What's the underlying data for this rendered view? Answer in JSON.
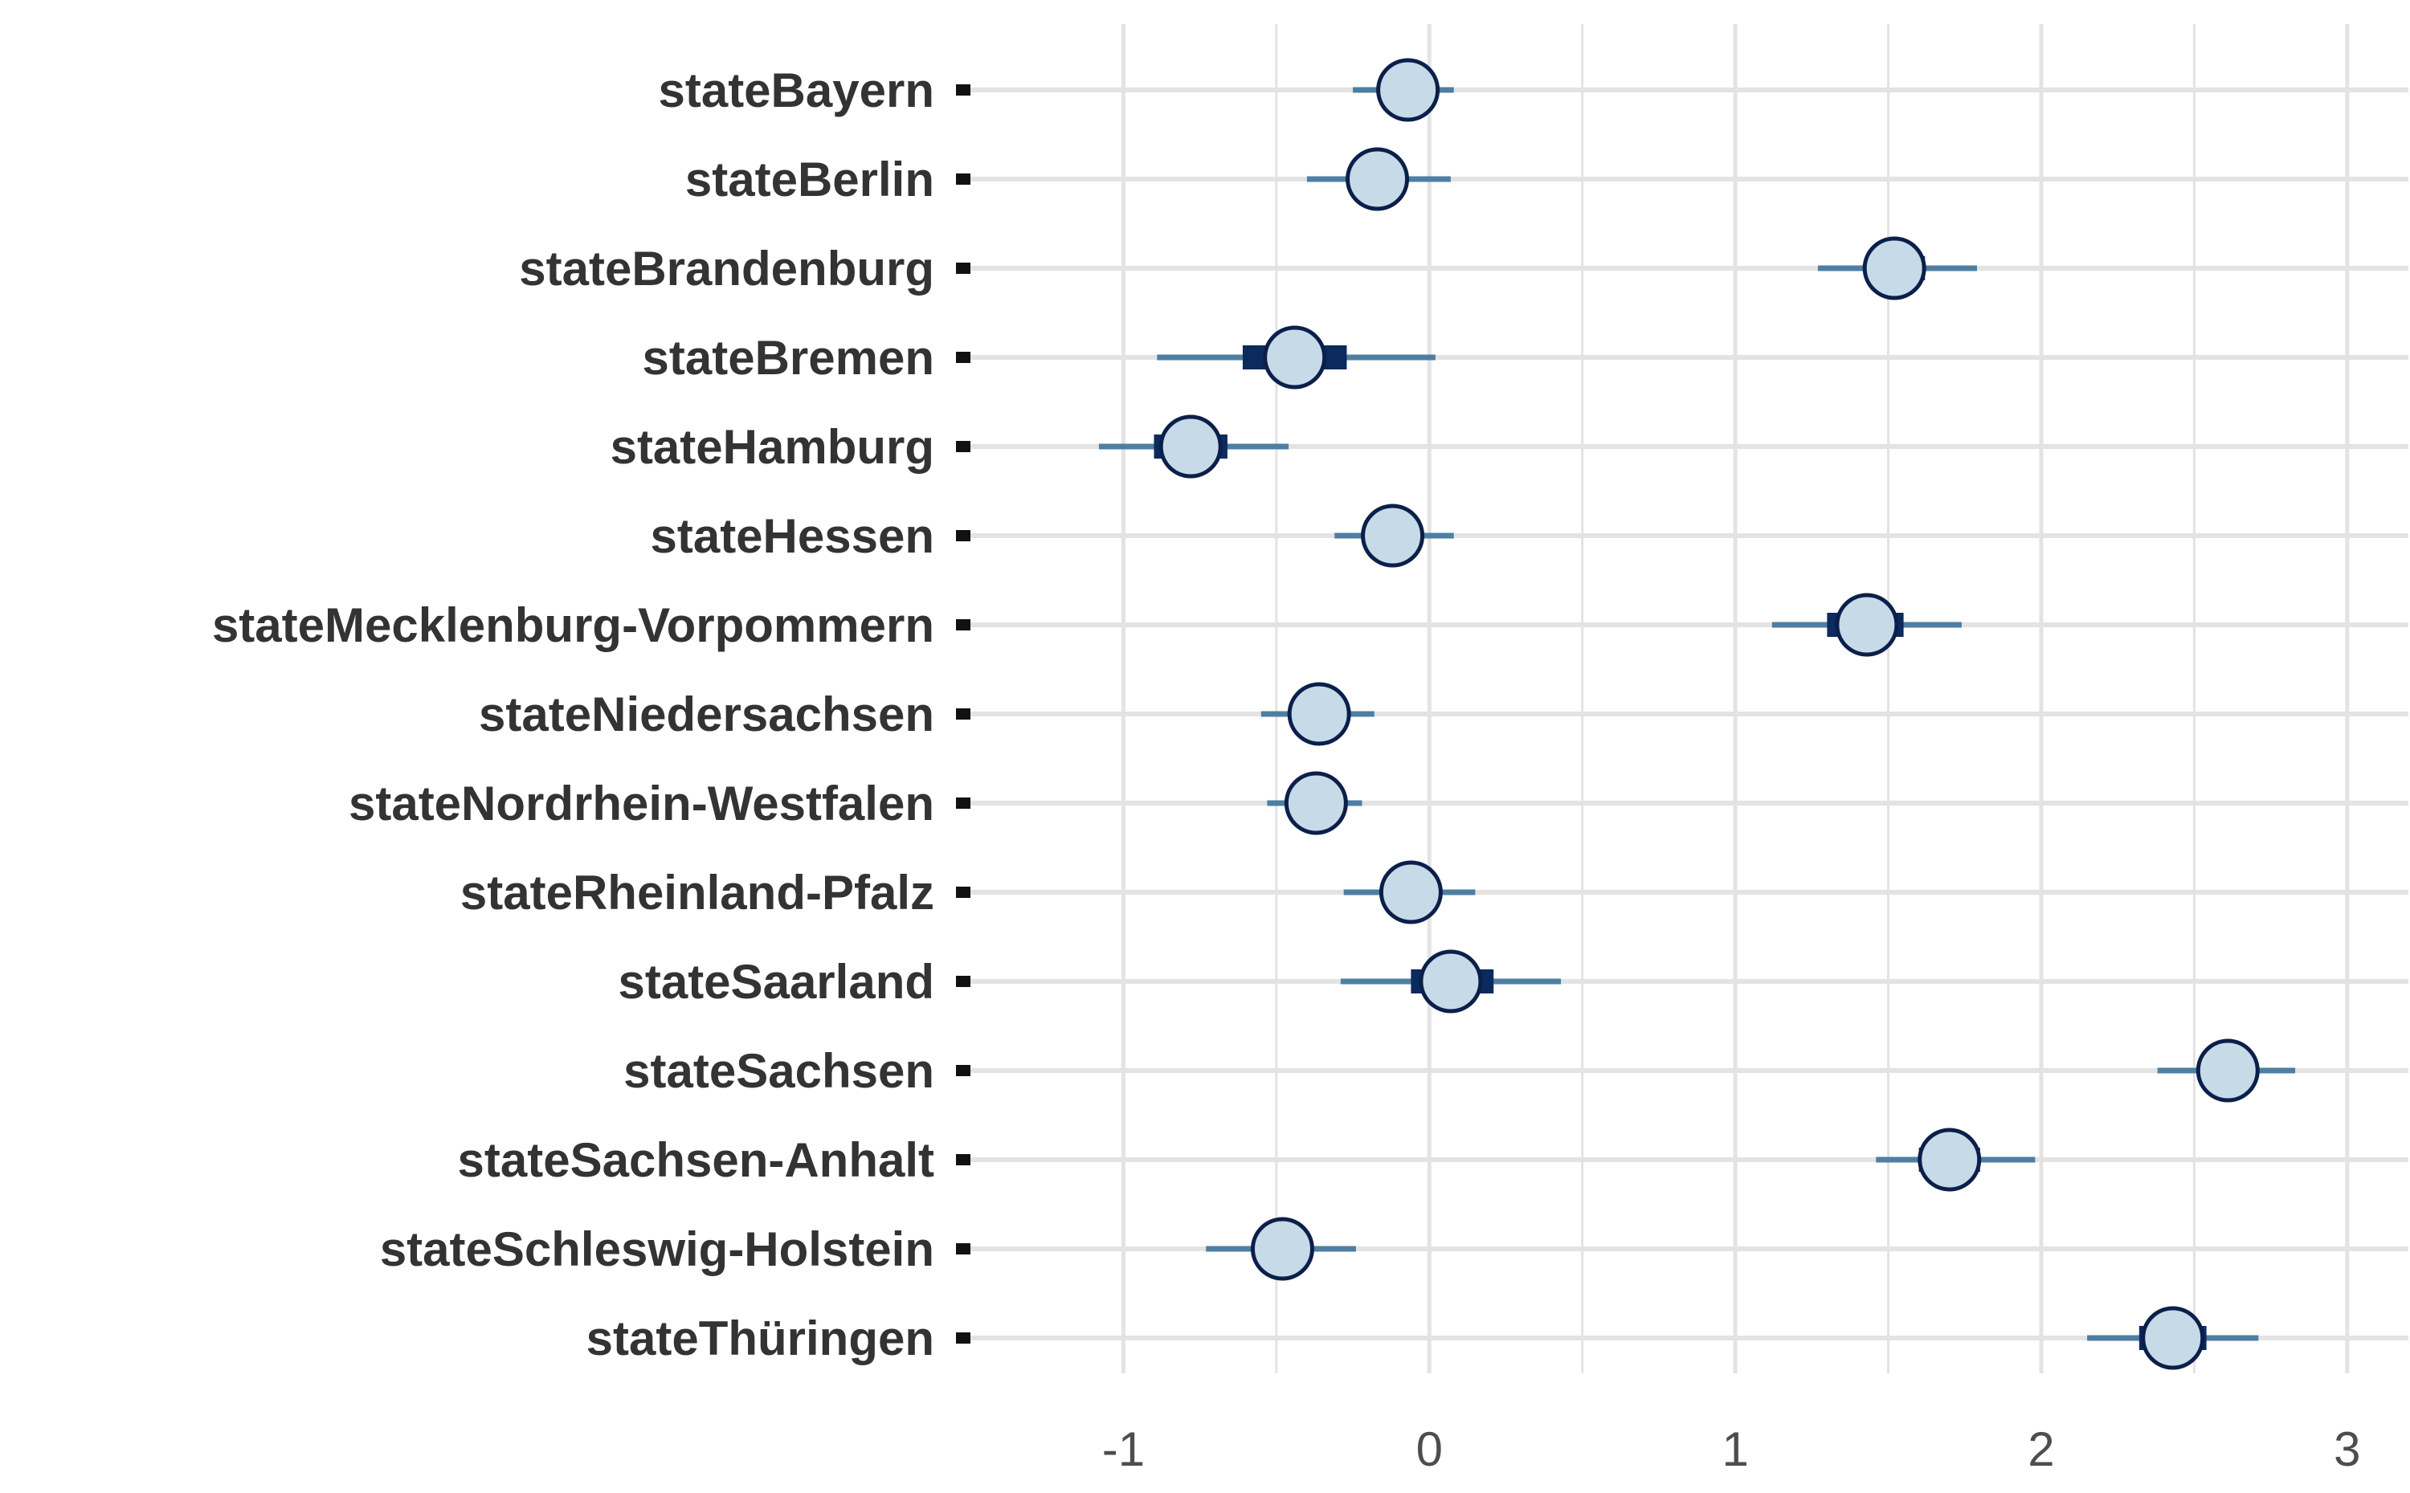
{
  "chart_data": {
    "type": "scatter",
    "subtype": "coefficient-interval-plot",
    "title": "",
    "xlabel": "",
    "ylabel": "",
    "xlim": [
      -1.5,
      3.2
    ],
    "x_ticks": [
      -1,
      0,
      1,
      2,
      3
    ],
    "x_tick_labels": [
      "-1",
      "0",
      "1",
      "2",
      "3"
    ],
    "grid": true,
    "legend": "none",
    "colors": {
      "point_fill": "#c6dae8",
      "point_stroke": "#0b1f4a",
      "outer_interval": "#4e7fa3",
      "inner_interval": "#0b2a5e",
      "grid": "#e3e3e3"
    },
    "categories": [
      "stateBayern",
      "stateBerlin",
      "stateBrandenburg",
      "stateBremen",
      "stateHamburg",
      "stateHessen",
      "stateMecklenburg-Vorpommern",
      "stateNiedersachsen",
      "stateNordrhein-Westfalen",
      "stateRheinland-Pfalz",
      "stateSaarland",
      "stateSachsen",
      "stateSachsen-Anhalt",
      "stateSchleswig-Holstein",
      "stateThüringen"
    ],
    "series": [
      {
        "estimate": [
          -0.07,
          -0.17,
          1.52,
          -0.44,
          -0.78,
          -0.12,
          1.43,
          -0.36,
          -0.37,
          -0.06,
          0.07,
          2.61,
          1.7,
          -0.48,
          2.43
        ],
        "inner_low": [
          -0.12,
          -0.22,
          1.44,
          -0.61,
          -0.9,
          -0.17,
          1.3,
          -0.42,
          -0.43,
          -0.11,
          -0.06,
          2.54,
          1.6,
          -0.53,
          2.32
        ],
        "inner_high": [
          -0.02,
          -0.12,
          1.62,
          -0.27,
          -0.66,
          -0.07,
          1.55,
          -0.3,
          -0.31,
          -0.01,
          0.21,
          2.68,
          1.8,
          -0.43,
          2.54
        ],
        "outer_low": [
          -0.25,
          -0.4,
          1.27,
          -0.89,
          -1.08,
          -0.31,
          1.12,
          -0.55,
          -0.53,
          -0.28,
          -0.29,
          2.38,
          1.46,
          -0.73,
          2.15
        ],
        "outer_high": [
          0.08,
          0.07,
          1.79,
          0.02,
          -0.46,
          0.08,
          1.74,
          -0.18,
          -0.22,
          0.15,
          0.43,
          2.83,
          1.98,
          -0.24,
          2.71
        ]
      }
    ]
  }
}
